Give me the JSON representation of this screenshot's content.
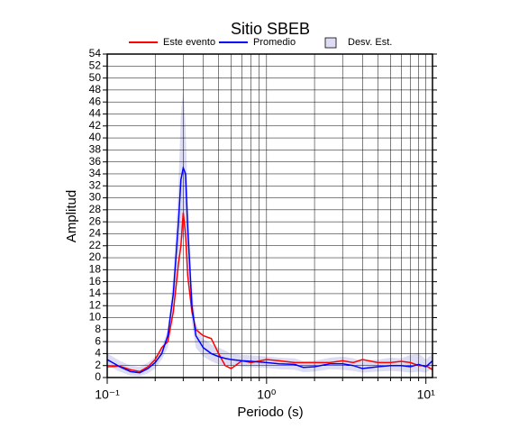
{
  "chart_data": {
    "type": "line",
    "title": "Sitio SBEB",
    "xlabel": "Periodo (s)",
    "ylabel": "Amplitud",
    "xscale": "log",
    "xlim": [
      0.1,
      11
    ],
    "xticks": [
      {
        "value": 0.1,
        "label": "10⁻¹"
      },
      {
        "value": 1,
        "label": "10⁰"
      },
      {
        "value": 10,
        "label": "10¹"
      }
    ],
    "xminorticks": [
      0.2,
      0.3,
      0.4,
      0.5,
      0.6,
      0.7,
      0.8,
      0.9,
      2,
      3,
      4,
      5,
      6,
      7,
      8,
      9
    ],
    "ylim": [
      0,
      54
    ],
    "yticks": [
      0,
      2,
      4,
      6,
      8,
      10,
      12,
      14,
      16,
      18,
      20,
      22,
      24,
      26,
      28,
      30,
      32,
      34,
      36,
      38,
      40,
      42,
      44,
      46,
      48,
      50,
      52,
      54
    ],
    "grid": true,
    "x": [
      0.1,
      0.12,
      0.14,
      0.16,
      0.18,
      0.2,
      0.22,
      0.24,
      0.26,
      0.28,
      0.29,
      0.3,
      0.31,
      0.32,
      0.34,
      0.36,
      0.4,
      0.45,
      0.5,
      0.55,
      0.6,
      0.7,
      0.8,
      1.0,
      1.2,
      1.5,
      1.7,
      2,
      2.5,
      3,
      3.5,
      4,
      5,
      6,
      7,
      8,
      9,
      10,
      11
    ],
    "series": [
      {
        "name": "Desv. Est.",
        "color": "#dcdcf5",
        "upper": [
          4,
          2.8,
          2,
          1.8,
          2.5,
          3.5,
          5,
          8,
          17,
          32,
          44,
          48,
          42,
          30,
          15,
          9,
          6.5,
          5.5,
          5,
          4.5,
          4,
          3.8,
          3.7,
          3.5,
          3.3,
          3.2,
          2.7,
          2.8,
          3.3,
          3.5,
          3.2,
          2.8,
          3,
          3.3,
          3.2,
          3.8,
          4,
          3,
          4
        ],
        "lower": [
          2,
          1,
          0.3,
          0.2,
          0.7,
          1.5,
          3,
          5,
          11,
          20,
          24,
          23,
          24,
          19,
          9,
          5,
          3.5,
          2.7,
          2.2,
          2,
          2,
          1.8,
          1.7,
          1.6,
          1.4,
          1.3,
          0.9,
          1,
          1.4,
          1.3,
          1.1,
          0.8,
          1,
          1.1,
          1,
          0.8,
          1,
          0.8,
          1.6
        ]
      },
      {
        "name": "Este evento",
        "color": "#ff0000",
        "values": [
          1.8,
          1.9,
          1.3,
          1.0,
          1.8,
          3,
          5,
          6,
          11,
          19,
          22,
          27.5,
          24,
          17,
          11,
          8,
          7,
          6.5,
          4,
          2,
          1.5,
          2.8,
          2.5,
          3,
          2.8,
          2.5,
          2.5,
          2.5,
          2.5,
          2.8,
          2.5,
          3,
          2.5,
          2.5,
          2.7,
          2.5,
          2,
          2,
          1.3
        ]
      },
      {
        "name": "Promedio",
        "color": "#0000ff",
        "values": [
          3,
          1.8,
          1,
          0.8,
          1.5,
          2.5,
          4,
          7,
          14,
          26,
          33,
          35,
          34,
          25,
          12,
          7,
          5,
          4,
          3.5,
          3.2,
          3,
          2.8,
          2.7,
          2.5,
          2.3,
          2.2,
          1.7,
          1.8,
          2.3,
          2.3,
          2,
          1.5,
          1.8,
          2,
          2,
          1.8,
          2.2,
          1.8,
          2.8
        ]
      }
    ]
  }
}
